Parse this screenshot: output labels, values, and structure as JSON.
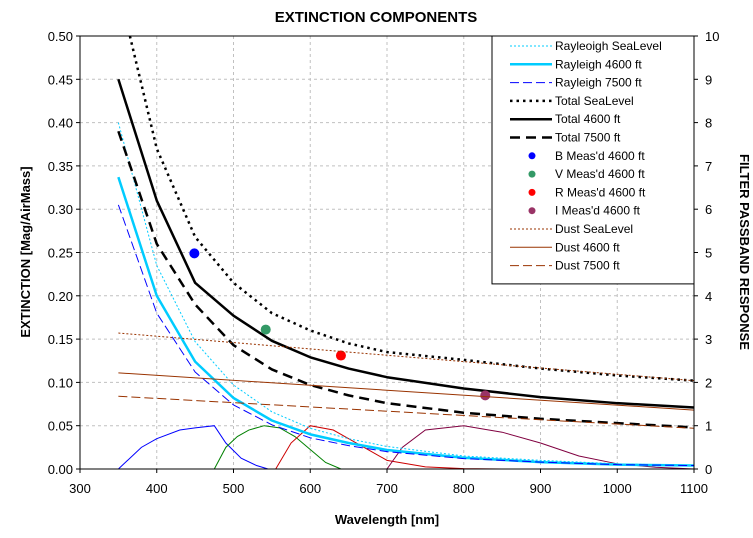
{
  "chart_data": {
    "type": "line",
    "title": "EXTINCTION COMPONENTS",
    "xlabel": "Wavelength [nm]",
    "ylabel": "EXTINCTION [Mag/AirMass]",
    "y2label": "FILTER PASSBAND RESPONSE",
    "xlim": [
      300,
      1100
    ],
    "ylim": [
      0,
      0.5
    ],
    "y2lim": [
      0,
      10
    ],
    "x_ticks": [
      "300",
      "400",
      "500",
      "600",
      "700",
      "800",
      "900",
      "1000",
      "1100"
    ],
    "y_ticks": [
      "0.00",
      "0.05",
      "0.10",
      "0.15",
      "0.20",
      "0.25",
      "0.30",
      "0.35",
      "0.40",
      "0.45",
      "0.50"
    ],
    "y2_ticks": [
      "0",
      "1",
      "2",
      "3",
      "4",
      "5",
      "6",
      "7",
      "8",
      "9",
      "10"
    ],
    "grid": true,
    "legend_position": "top-right",
    "series": [
      {
        "name": "Rayleoigh SeaLevel",
        "color": "#00ccff",
        "style": "dotted-thin",
        "x": [
          350,
          400,
          450,
          500,
          550,
          600,
          650,
          700,
          800,
          900,
          1000,
          1100
        ],
        "y": [
          0.4,
          0.235,
          0.147,
          0.097,
          0.066,
          0.047,
          0.035,
          0.026,
          0.015,
          0.01,
          0.006,
          0.004
        ]
      },
      {
        "name": "Rayleigh 4600 ft",
        "color": "#00ccff",
        "style": "solid-thick",
        "x": [
          350,
          400,
          450,
          500,
          550,
          600,
          650,
          700,
          800,
          900,
          1000,
          1100
        ],
        "y": [
          0.337,
          0.2,
          0.124,
          0.082,
          0.056,
          0.04,
          0.03,
          0.022,
          0.013,
          0.008,
          0.005,
          0.004
        ]
      },
      {
        "name": "Rayleigh 7500 ft",
        "color": "#0000ff",
        "style": "dash-thin",
        "x": [
          350,
          400,
          450,
          500,
          550,
          600,
          650,
          700,
          800,
          900,
          1000,
          1100
        ],
        "y": [
          0.305,
          0.18,
          0.112,
          0.074,
          0.051,
          0.036,
          0.027,
          0.02,
          0.012,
          0.008,
          0.005,
          0.004
        ]
      },
      {
        "name": "Total SeaLevel",
        "color": "#000000",
        "style": "dotted-thick",
        "x": [
          365,
          400,
          450,
          500,
          550,
          600,
          650,
          700,
          800,
          900,
          1000,
          1100
        ],
        "y": [
          0.5,
          0.37,
          0.268,
          0.215,
          0.18,
          0.16,
          0.145,
          0.135,
          0.126,
          0.116,
          0.108,
          0.102
        ]
      },
      {
        "name": "Total 4600 ft",
        "color": "#000000",
        "style": "solid-thick",
        "x": [
          350,
          400,
          450,
          500,
          550,
          600,
          650,
          700,
          800,
          900,
          1000,
          1100
        ],
        "y": [
          0.45,
          0.31,
          0.215,
          0.177,
          0.148,
          0.129,
          0.116,
          0.106,
          0.093,
          0.083,
          0.076,
          0.071
        ]
      },
      {
        "name": "Total 7500 ft",
        "color": "#000000",
        "style": "dash-thick",
        "x": [
          350,
          400,
          450,
          500,
          550,
          600,
          650,
          700,
          800,
          900,
          1000,
          1100
        ],
        "y": [
          0.39,
          0.26,
          0.19,
          0.143,
          0.115,
          0.097,
          0.085,
          0.076,
          0.065,
          0.058,
          0.053,
          0.048
        ]
      },
      {
        "name": "B Meas'd 4600 ft",
        "color": "#0000ff",
        "style": "marker",
        "x": [
          449
        ],
        "y": [
          0.249
        ]
      },
      {
        "name": "V Meas'd 4600 ft",
        "color": "#339966",
        "style": "marker",
        "x": [
          542
        ],
        "y": [
          0.161
        ]
      },
      {
        "name": "R Meas'd 4600 ft",
        "color": "#ff0000",
        "style": "marker",
        "x": [
          640
        ],
        "y": [
          0.131
        ]
      },
      {
        "name": "I Meas'd 4600 ft",
        "color": "#993366",
        "style": "marker",
        "x": [
          828
        ],
        "y": [
          0.085
        ]
      },
      {
        "name": "Dust SeaLevel",
        "color": "#993300",
        "style": "dotted-thin",
        "x": [
          350,
          1100
        ],
        "y": [
          0.157,
          0.102
        ]
      },
      {
        "name": "Dust 4600 ft",
        "color": "#993300",
        "style": "solid-thin",
        "x": [
          350,
          1100
        ],
        "y": [
          0.111,
          0.068
        ]
      },
      {
        "name": "Dust 7500 ft",
        "color": "#993300",
        "style": "dash-thin",
        "x": [
          350,
          1100
        ],
        "y": [
          0.084,
          0.047
        ]
      }
    ],
    "passbands": [
      {
        "color": "#0000ff",
        "x": [
          350,
          380,
          400,
          430,
          450,
          475,
          490,
          510,
          530,
          545
        ],
        "y2": [
          0,
          0.5,
          0.7,
          0.9,
          0.95,
          1.0,
          0.6,
          0.25,
          0.08,
          0.0
        ]
      },
      {
        "color": "#008000",
        "x": [
          475,
          490,
          505,
          520,
          540,
          560,
          580,
          600,
          620,
          640
        ],
        "y2": [
          0,
          0.5,
          0.75,
          0.9,
          1.0,
          0.95,
          0.75,
          0.45,
          0.15,
          0.0
        ]
      },
      {
        "color": "#cc0000",
        "x": [
          555,
          575,
          600,
          630,
          650,
          680,
          700,
          750,
          800,
          850
        ],
        "y2": [
          0,
          0.6,
          1.0,
          0.9,
          0.7,
          0.4,
          0.2,
          0.05,
          0.01,
          0.0
        ]
      },
      {
        "color": "#800040",
        "x": [
          700,
          720,
          750,
          800,
          850,
          900,
          950,
          1000,
          1050,
          1100
        ],
        "y2": [
          0,
          0.5,
          0.9,
          1.0,
          0.85,
          0.6,
          0.3,
          0.12,
          0.04,
          0.0
        ]
      }
    ]
  }
}
